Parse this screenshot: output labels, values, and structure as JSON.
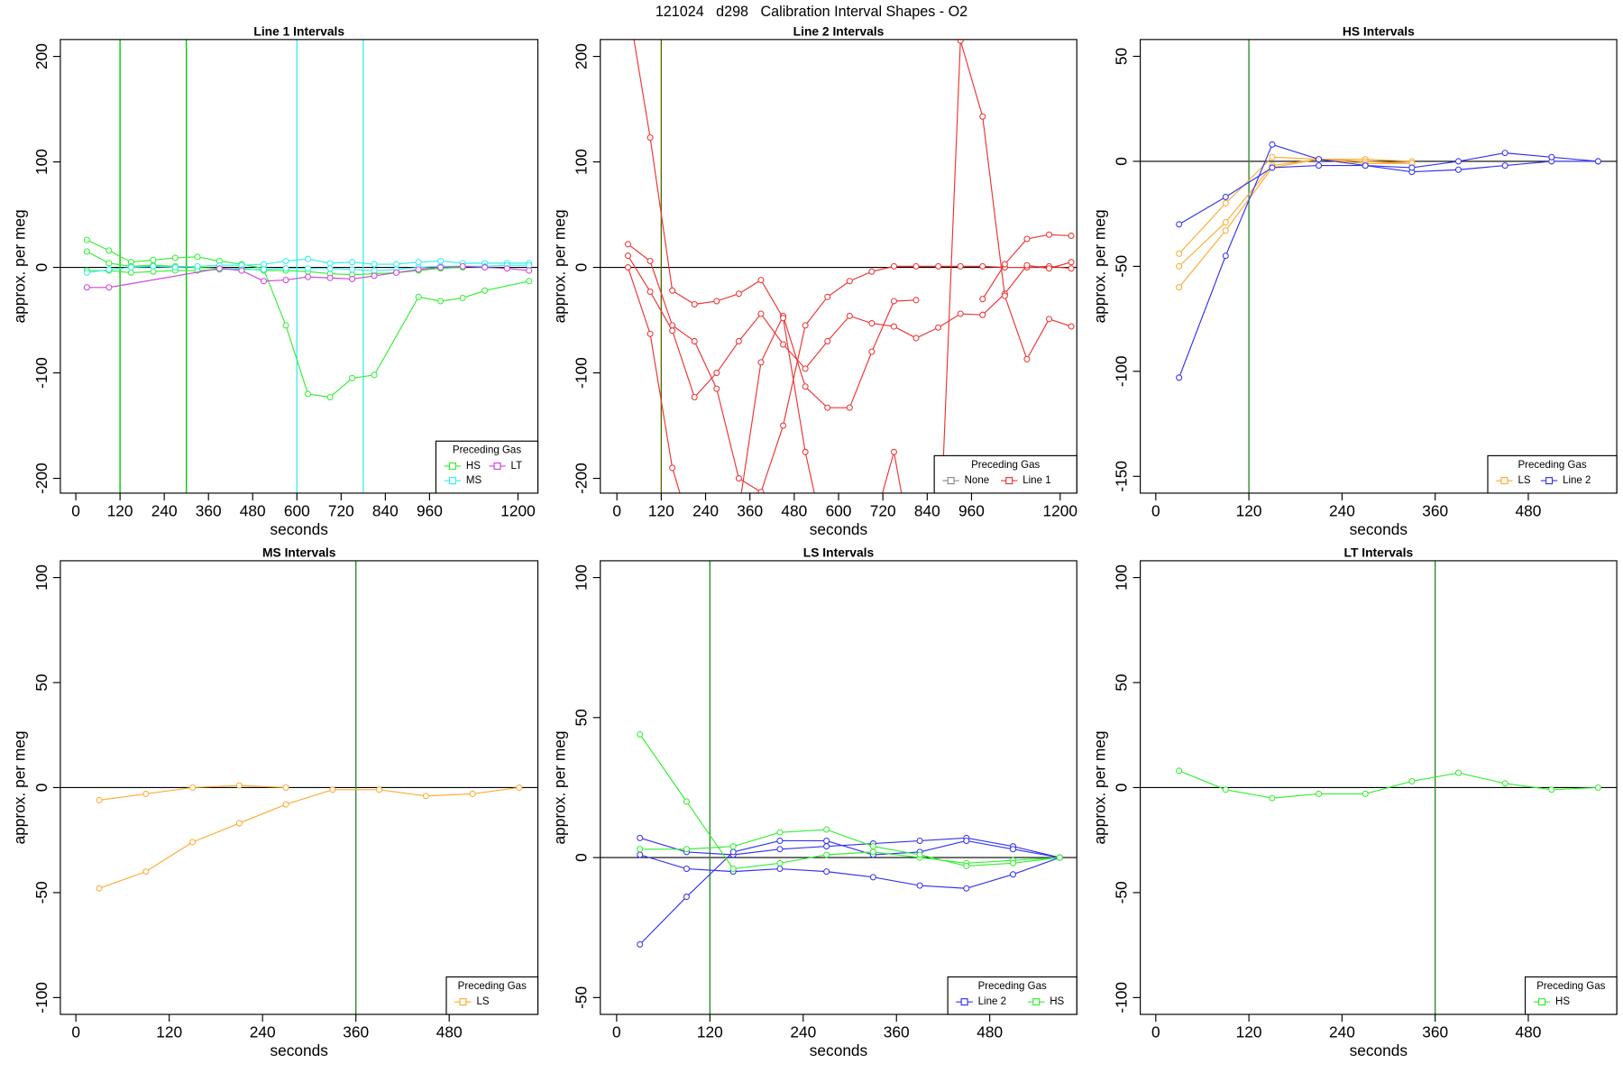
{
  "title": "121024   d298   Calibration Interval Shapes - O2",
  "chart_data": [
    {
      "type": "line",
      "title": "Line 1 Intervals",
      "xlabel": "seconds",
      "ylabel": "approx. per meg",
      "xlim": [
        -42,
        1254
      ],
      "ylim": [
        -214,
        216
      ],
      "xticks": [
        0,
        120,
        240,
        360,
        480,
        600,
        720,
        840,
        960,
        1200
      ],
      "yticks": [
        -200,
        -100,
        0,
        100,
        200
      ],
      "hline": 0,
      "vlines": [
        {
          "x": 120,
          "color": "#00cc00"
        },
        {
          "x": 300,
          "color": "#00cc00"
        },
        {
          "x": 600,
          "color": "#44eeee"
        },
        {
          "x": 780,
          "color": "#44eeee"
        }
      ],
      "legend": {
        "title": "Preceding Gas",
        "position": "bottomright",
        "entries": [
          {
            "name": "HS",
            "color": "#33ee33"
          },
          {
            "name": "LT",
            "color": "#cc44dd"
          },
          {
            "name": "MS",
            "color": "#33eeee"
          }
        ]
      },
      "series": [
        {
          "color": "#33ee33",
          "x": [
            30,
            90,
            150,
            210,
            270,
            330,
            390,
            450,
            510
          ],
          "values": [
            26,
            16,
            5,
            7,
            9,
            10,
            6,
            3,
            -1
          ]
        },
        {
          "color": "#33ee33",
          "x": [
            30,
            90,
            150,
            210,
            270,
            330,
            390,
            450,
            510,
            570,
            630,
            690,
            750,
            810,
            930,
            990,
            1050,
            1110,
            1230
          ],
          "values": [
            15,
            4,
            1,
            2,
            1,
            0,
            -1,
            -2,
            -2,
            -55,
            -120,
            -123,
            -105,
            -102,
            -28,
            -32,
            -29,
            -22,
            -13
          ]
        },
        {
          "color": "#33ee33",
          "x": [
            30,
            90,
            150,
            210,
            270,
            330,
            390,
            450,
            510,
            570,
            630,
            690,
            750,
            810,
            870,
            930,
            990,
            1050
          ],
          "values": [
            -3,
            -3,
            -5,
            -4,
            -3,
            -3,
            -2,
            -1,
            -3,
            -3,
            -4,
            -6,
            -7,
            -6,
            -5,
            -3,
            -1,
            0
          ]
        },
        {
          "color": "#33eeee",
          "x": [
            30,
            90,
            150,
            210,
            270,
            330,
            390,
            450,
            510,
            570,
            630,
            690,
            750,
            810,
            870,
            930,
            990,
            1050,
            1110,
            1170,
            1230
          ],
          "values": [
            -5,
            -2,
            0,
            1,
            0,
            1,
            2,
            2,
            3,
            6,
            8,
            4,
            5,
            3,
            3,
            5,
            6,
            4,
            4,
            4,
            4
          ]
        },
        {
          "color": "#33eeee",
          "x": [
            390,
            450,
            510,
            570,
            630,
            690,
            750,
            810,
            870,
            930,
            990,
            1050,
            1110,
            1170,
            1230
          ],
          "values": [
            -1,
            -2,
            -2,
            -1,
            -1,
            -1,
            -2,
            -3,
            -2,
            0,
            1,
            1,
            1,
            2,
            2
          ]
        },
        {
          "color": "#cc44dd",
          "x": [
            30,
            90,
            390,
            450,
            510,
            570,
            630,
            690,
            750,
            810,
            870,
            930,
            990,
            1050,
            1110,
            1170,
            1230
          ],
          "values": [
            -19,
            -19,
            -1,
            -3,
            -13,
            -12,
            -9,
            -10,
            -11,
            -8,
            -5,
            -2,
            0,
            1,
            0,
            -1,
            -3
          ]
        }
      ]
    },
    {
      "type": "line",
      "title": "Line 2 Intervals",
      "xlabel": "seconds",
      "ylabel": "approx. per meg",
      "xlim": [
        -45,
        1245
      ],
      "ylim": [
        -214,
        216
      ],
      "xticks": [
        0,
        120,
        240,
        360,
        480,
        600,
        720,
        840,
        960,
        1200
      ],
      "yticks": [
        -200,
        -100,
        0,
        100,
        200
      ],
      "hline": 0,
      "vlines": [
        {
          "x": 120,
          "color": "#556b00"
        }
      ],
      "legend": {
        "title": "Preceding Gas",
        "position": "bottomright",
        "entries": [
          {
            "name": "None",
            "color": "#888888"
          },
          {
            "name": "Line 1",
            "color": "#ee3333"
          }
        ]
      },
      "series": [
        {
          "color": "#ee3333",
          "x": [
            30,
            90,
            150,
            210,
            270,
            330,
            390,
            450,
            510,
            570,
            630,
            690,
            750,
            810,
            870,
            930,
            990,
            1050,
            1110,
            1170,
            1230
          ],
          "values": [
            22,
            6,
            -55,
            -70,
            -115,
            -200,
            -213,
            -150,
            -55,
            -28,
            -13,
            -4,
            1,
            1,
            1,
            1,
            1,
            0,
            0,
            1,
            -1
          ]
        },
        {
          "color": "#ee3333",
          "x": [
            30,
            90,
            150,
            210,
            270,
            330,
            390,
            450,
            510,
            570,
            630,
            690,
            750,
            810,
            870,
            930,
            990,
            1050,
            1110,
            1170,
            1230
          ],
          "values": [
            11,
            -23,
            -60,
            -123,
            -100,
            -70,
            -44,
            -73,
            -96,
            -70,
            -46,
            -53,
            -56,
            -67,
            -57,
            -44,
            -45,
            -25,
            2,
            -1,
            5
          ]
        },
        {
          "color": "#ee3333",
          "x": [
            30,
            90,
            150,
            210,
            270,
            330,
            390,
            450,
            510,
            570,
            630,
            690,
            750,
            810
          ],
          "values": [
            0,
            -63,
            -190,
            -260,
            -250,
            -230,
            -90,
            -46,
            -113,
            -133,
            -133,
            -80,
            -32,
            -31
          ]
        },
        {
          "color": "#ee3333",
          "x": [
            30,
            90,
            150,
            210,
            270,
            330,
            390,
            450,
            510,
            570,
            630,
            690,
            750,
            810
          ],
          "values": [
            250,
            123,
            -22,
            -35,
            -32,
            -25,
            -12,
            -48,
            -175,
            -270,
            -260,
            -250,
            -175,
            -290
          ]
        },
        {
          "color": "#ee3333",
          "x": [
            870,
            930,
            990,
            1050,
            1110,
            1170,
            1230
          ],
          "values": [
            -300,
            215,
            143,
            -27,
            -87,
            -49,
            -56
          ]
        },
        {
          "color": "#ee3333",
          "x": [
            990,
            1050,
            1110,
            1170,
            1230
          ],
          "values": [
            -30,
            3,
            27,
            31,
            30
          ]
        }
      ]
    },
    {
      "type": "line",
      "title": "HS Intervals",
      "xlabel": "seconds",
      "ylabel": "approx. per meg",
      "xlim": [
        -20,
        594
      ],
      "ylim": [
        -158,
        58
      ],
      "xticks": [
        0,
        120,
        240,
        360,
        480
      ],
      "yticks": [
        -150,
        -100,
        -50,
        0,
        50
      ],
      "hline": 0,
      "vlines": [
        {
          "x": 120,
          "color": "#2e8b2e"
        }
      ],
      "legend": {
        "title": "Preceding Gas",
        "position": "bottomright",
        "entries": [
          {
            "name": "LS",
            "color": "#ffaa33"
          },
          {
            "name": "Line 2",
            "color": "#3333ee"
          }
        ]
      },
      "series": [
        {
          "color": "#ffaa33",
          "x": [
            30,
            90,
            150,
            210,
            270,
            330
          ],
          "values": [
            -44,
            -20,
            2,
            1,
            1,
            0
          ]
        },
        {
          "color": "#ffaa33",
          "x": [
            30,
            90,
            150,
            210,
            270,
            330
          ],
          "values": [
            -50,
            -29,
            -2,
            1,
            0,
            -1
          ]
        },
        {
          "color": "#ffaa33",
          "x": [
            30,
            90,
            150,
            210,
            270,
            330
          ],
          "values": [
            -60,
            -33,
            -3,
            1,
            -1,
            -1
          ]
        },
        {
          "color": "#3333ee",
          "x": [
            30,
            90,
            150,
            210,
            270,
            330,
            390,
            450,
            510,
            570
          ],
          "values": [
            -103,
            -45,
            8,
            1,
            -2,
            -5,
            -4,
            -2,
            0,
            0
          ]
        },
        {
          "color": "#3333ee",
          "x": [
            30,
            90,
            150,
            210,
            270,
            330,
            390,
            450,
            510,
            570
          ],
          "values": [
            -30,
            -17,
            -3,
            -2,
            -2,
            -3,
            0,
            4,
            2,
            0
          ]
        }
      ]
    },
    {
      "type": "line",
      "title": "MS Intervals",
      "xlabel": "seconds",
      "ylabel": "approx. per meg",
      "xlim": [
        -20,
        594
      ],
      "ylim": [
        -108,
        108
      ],
      "xticks": [
        0,
        120,
        240,
        360,
        480
      ],
      "yticks": [
        -100,
        -50,
        0,
        50,
        100
      ],
      "hline": 0,
      "vlines": [
        {
          "x": 360,
          "color": "#2e8b2e"
        }
      ],
      "legend": {
        "title": "Preceding Gas",
        "position": "bottomright",
        "entries": [
          {
            "name": "LS",
            "color": "#ffaa33"
          }
        ]
      },
      "series": [
        {
          "color": "#ffaa33",
          "x": [
            30,
            90,
            150,
            210,
            270
          ],
          "values": [
            -6,
            -3,
            0,
            1,
            0
          ]
        },
        {
          "color": "#ffaa33",
          "x": [
            30,
            90,
            150,
            210,
            270,
            330,
            390,
            450,
            510,
            570
          ],
          "values": [
            -48,
            -40,
            -26,
            -17,
            -8,
            -1,
            -1,
            -4,
            -3,
            0
          ]
        }
      ]
    },
    {
      "type": "line",
      "title": "LS Intervals",
      "xlabel": "seconds",
      "ylabel": "approx. per meg",
      "xlim": [
        -21,
        592
      ],
      "ylim": [
        -56,
        106
      ],
      "xticks": [
        0,
        120,
        240,
        360,
        480
      ],
      "yticks": [
        -50,
        0,
        50,
        100
      ],
      "hline": 0,
      "vlines": [
        {
          "x": 120,
          "color": "#2e8b2e"
        }
      ],
      "legend": {
        "title": "Preceding Gas",
        "position": "bottomright",
        "entries": [
          {
            "name": "Line 2",
            "color": "#3333ee"
          },
          {
            "name": "HS",
            "color": "#33ee33"
          }
        ]
      },
      "series": [
        {
          "color": "#3333ee",
          "x": [
            30,
            90,
            150,
            210,
            270,
            330,
            390,
            450,
            510,
            570
          ],
          "values": [
            7,
            2,
            1,
            3,
            4,
            5,
            6,
            7,
            4,
            0
          ]
        },
        {
          "color": "#3333ee",
          "x": [
            30,
            90,
            150,
            210,
            270,
            330,
            390,
            450,
            510,
            570
          ],
          "values": [
            1,
            -4,
            -5,
            -4,
            -5,
            -7,
            -10,
            -11,
            -6,
            0
          ]
        },
        {
          "color": "#3333ee",
          "x": [
            30,
            90,
            150,
            210,
            270,
            330,
            390,
            450,
            510,
            570
          ],
          "values": [
            -31,
            -14,
            2,
            6,
            6,
            1,
            2,
            6,
            3,
            0
          ]
        },
        {
          "color": "#33ee33",
          "x": [
            30,
            90,
            150,
            210,
            270,
            330,
            390,
            450,
            510,
            570
          ],
          "values": [
            44,
            20,
            -4,
            -2,
            1,
            2,
            0,
            -2,
            -1,
            0
          ]
        },
        {
          "color": "#33ee33",
          "x": [
            30,
            90,
            150,
            210,
            270,
            330,
            390,
            450,
            510,
            570
          ],
          "values": [
            3,
            3,
            4,
            9,
            10,
            4,
            1,
            -3,
            -2,
            0
          ]
        }
      ]
    },
    {
      "type": "line",
      "title": "LT Intervals",
      "xlabel": "seconds",
      "ylabel": "approx. per meg",
      "xlim": [
        -20,
        594
      ],
      "ylim": [
        -108,
        108
      ],
      "xticks": [
        0,
        120,
        240,
        360,
        480
      ],
      "yticks": [
        -100,
        -50,
        0,
        50,
        100
      ],
      "hline": 0,
      "vlines": [
        {
          "x": 360,
          "color": "#2e8b2e"
        }
      ],
      "legend": {
        "title": "Preceding Gas",
        "position": "bottomright",
        "entries": [
          {
            "name": "HS",
            "color": "#33ee33"
          }
        ]
      },
      "series": [
        {
          "color": "#33ee33",
          "x": [
            30,
            90,
            150,
            210,
            270,
            330,
            390,
            450,
            510,
            570
          ],
          "values": [
            8,
            -1,
            -5,
            -3,
            -3,
            3,
            7,
            2,
            -1,
            0
          ]
        }
      ]
    }
  ]
}
